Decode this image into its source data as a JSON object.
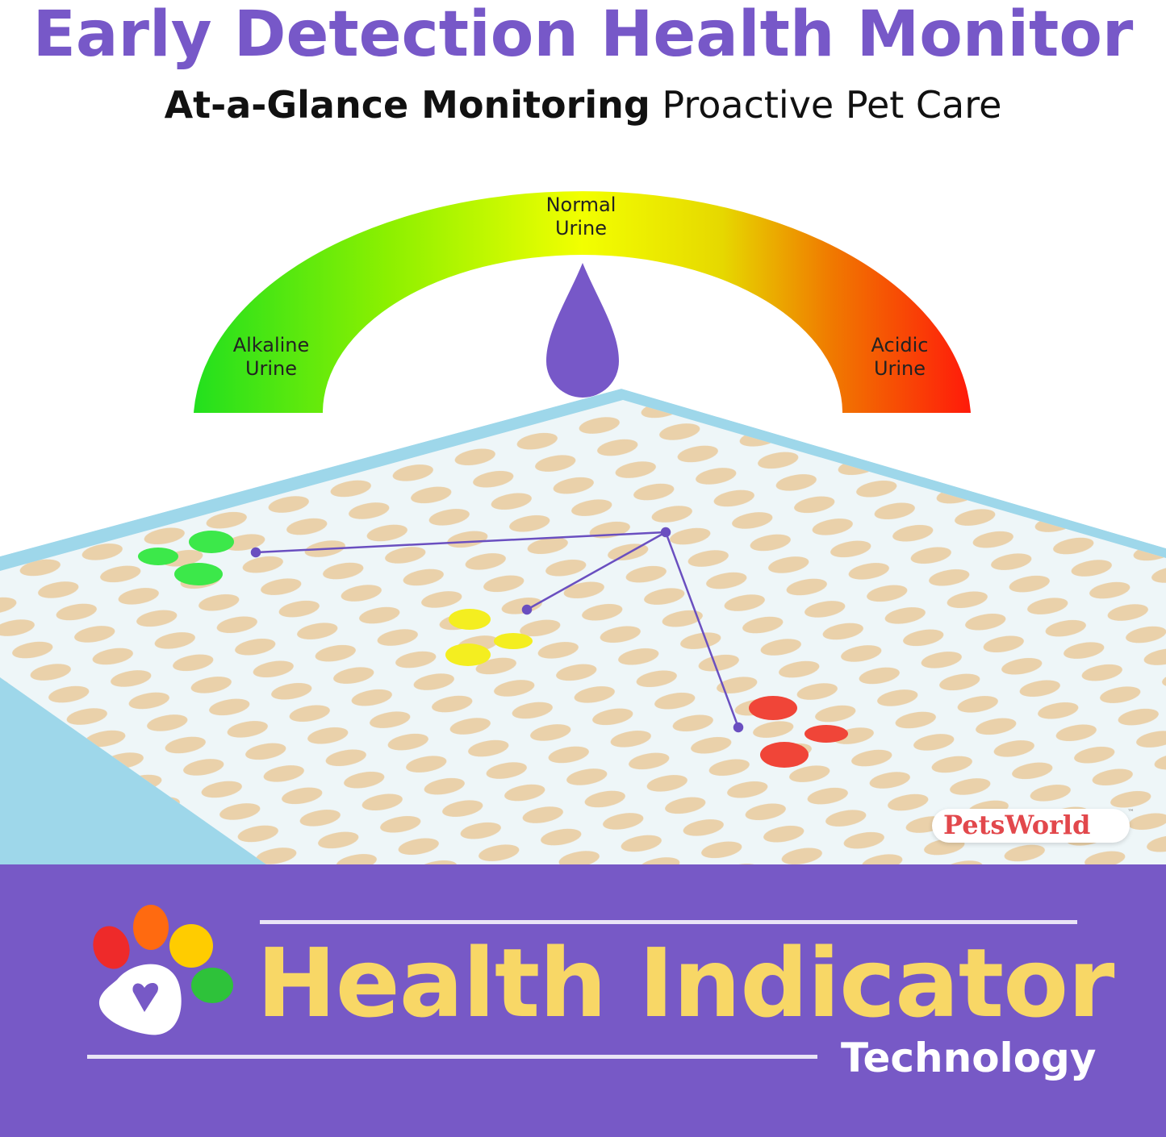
{
  "header": {
    "title": "Early Detection Health Monitor",
    "subtitle_bold": "At-a-Glance Monitoring",
    "subtitle_rest": "Proactive Pet Care"
  },
  "gauge": {
    "labels": {
      "alkaline_1": "Alkaline",
      "alkaline_2": "Urine",
      "normal_1": "Normal",
      "normal_2": "Urine",
      "acidic_1": "Acidic",
      "acidic_2": "Urine"
    },
    "colors": {
      "alkaline": "#22e01e",
      "normal": "#f2ff00",
      "acidic": "#ff1a0a",
      "drop": "#7758c8"
    }
  },
  "mat": {
    "border_color": "#9ed7ea",
    "pattern_color": "#e8c490",
    "spot_colors": {
      "green": "#3ce84a",
      "yellow": "#f4ee20",
      "red": "#f04538"
    }
  },
  "brand": {
    "logo_text": "PetsWorld",
    "trademark": "™"
  },
  "footer": {
    "band_color": "#7759c6",
    "headline": "Health Indicator",
    "tagline": "Technology",
    "headline_color": "#f8d766",
    "paw_colors": [
      "#ee2a2a",
      "#ff6a10",
      "#ffcc00",
      "#2ec23a"
    ]
  }
}
